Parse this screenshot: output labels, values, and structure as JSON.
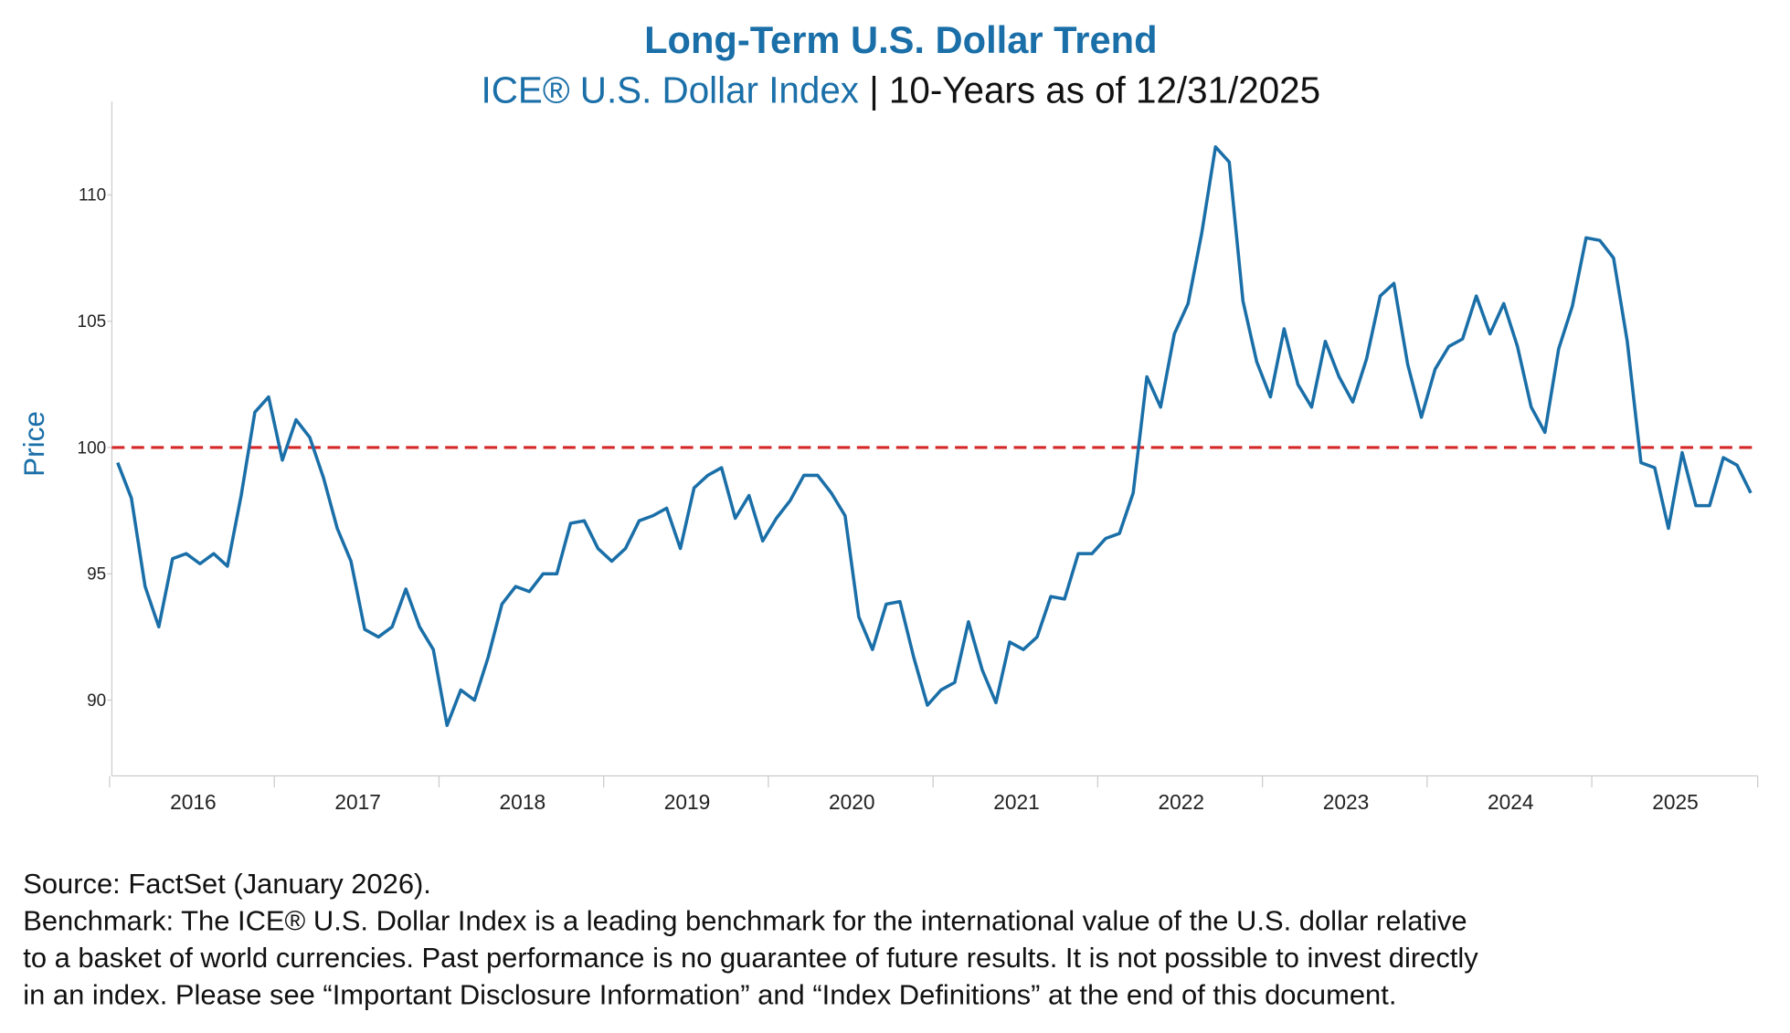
{
  "chart_data": {
    "type": "line",
    "title": "Long-Term U.S. Dollar Trend",
    "subtitle": [
      "ICE® U.S. Dollar Index",
      "| 10-Years as of 12/31/2025"
    ],
    "y_label": "Price",
    "categories": [
      null,
      null,
      null,
      null,
      null,
      null,
      "2016",
      null,
      null,
      null,
      null,
      null,
      null,
      null,
      null,
      null,
      null,
      null,
      "2017",
      null,
      null,
      null,
      null,
      null,
      null,
      null,
      null,
      null,
      null,
      null,
      "2018",
      null,
      null,
      null,
      null,
      null,
      null,
      null,
      null,
      null,
      null,
      null,
      "2019",
      null,
      null,
      null,
      null,
      null,
      null,
      null,
      null,
      null,
      null,
      null,
      "2020",
      null,
      null,
      null,
      null,
      null,
      null,
      null,
      null,
      null,
      null,
      null,
      "2021",
      null,
      null,
      null,
      null,
      null,
      null,
      null,
      null,
      null,
      null,
      null,
      "2022",
      null,
      null,
      null,
      null,
      null,
      null,
      null,
      null,
      null,
      null,
      null,
      "2023",
      null,
      null,
      null,
      null,
      null,
      null,
      null,
      null,
      null,
      null,
      null,
      "2024",
      null,
      null,
      null,
      null,
      null,
      null,
      null,
      null,
      null,
      null,
      null,
      "2025",
      null,
      null,
      null,
      null,
      null
    ],
    "values": [
      99.4,
      98.0,
      94.5,
      92.9,
      95.6,
      95.8,
      95.4,
      95.8,
      95.3,
      98.1,
      101.4,
      102.0,
      99.5,
      101.1,
      100.4,
      98.8,
      96.8,
      95.5,
      92.8,
      92.5,
      92.9,
      94.4,
      92.9,
      92.0,
      89.0,
      90.4,
      90.0,
      91.7,
      93.8,
      94.5,
      94.3,
      95.0,
      95.0,
      97.0,
      97.1,
      96.0,
      95.5,
      96.0,
      97.1,
      97.3,
      97.6,
      96.0,
      98.4,
      98.9,
      99.2,
      97.2,
      98.1,
      96.3,
      97.2,
      97.9,
      98.9,
      98.9,
      98.2,
      97.3,
      93.3,
      92.0,
      93.8,
      93.9,
      91.7,
      89.8,
      90.4,
      90.7,
      93.1,
      91.2,
      89.9,
      92.3,
      92.0,
      92.5,
      94.1,
      94.0,
      95.8,
      95.8,
      96.4,
      96.6,
      98.2,
      102.8,
      101.6,
      104.5,
      105.7,
      108.5,
      111.9,
      111.3,
      105.8,
      103.4,
      102.0,
      104.7,
      102.5,
      101.6,
      104.2,
      102.8,
      101.8,
      103.5,
      106.0,
      106.5,
      103.3,
      101.2,
      103.1,
      104.0,
      104.3,
      106.0,
      104.5,
      105.7,
      104.0,
      101.6,
      100.6,
      103.9,
      105.6,
      108.3,
      108.2,
      107.5,
      104.2,
      99.4,
      99.2,
      96.8,
      99.8,
      97.7,
      97.7,
      99.6,
      99.3,
      98.2
    ],
    "color": "#1a6fa8",
    "ylim": [
      87,
      113.7
    ],
    "yticks": [
      90,
      95,
      100,
      105,
      110
    ],
    "reference_line": {
      "value": 100,
      "color": "#d62728"
    },
    "notes": [
      "Source: FactSet (January 2026).",
      "Benchmark: The ICE® U.S. Dollar Index is a leading benchmark for the international value of the U.S. dollar relative",
      "to a basket of world currencies. Past performance is no guarantee of future results. It is not possible to invest directly",
      "in an index. Please see “Important Disclosure Information” and “Index Definitions” at the end of this document."
    ]
  }
}
